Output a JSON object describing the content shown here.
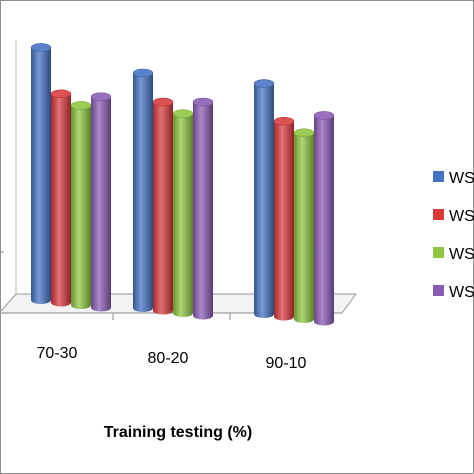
{
  "chart_data": {
    "type": "bar",
    "title": "",
    "xlabel": "Training testing (%)",
    "ylabel": "",
    "categories": [
      "70-30",
      "80-20",
      "90-10"
    ],
    "ylim": [
      0,
      1
    ],
    "grid": false,
    "legend_position": "right",
    "series": [
      {
        "name": "WS",
        "color": "#4472C4",
        "values": [
          0.94,
          0.86,
          0.83
        ]
      },
      {
        "name": "WS",
        "color": "#D9393A",
        "values": [
          0.78,
          0.76,
          0.7
        ]
      },
      {
        "name": "WS",
        "color": "#8DC63F",
        "values": [
          0.74,
          0.72,
          0.66
        ]
      },
      {
        "name": "WS",
        "color": "#8A5BB5",
        "values": [
          0.77,
          0.76,
          0.72
        ]
      }
    ]
  }
}
